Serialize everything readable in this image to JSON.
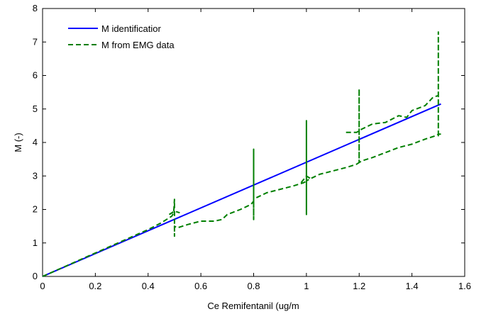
{
  "chart_data": {
    "type": "line",
    "title": "",
    "xlabel": "Ce Remifentanil (ug/m",
    "ylabel": "M (-)",
    "xlim": [
      0,
      1.6
    ],
    "ylim": [
      0,
      8
    ],
    "xticks": [
      "0",
      "0.2",
      "0.4",
      "0.6",
      "0.8",
      "1",
      "1.2",
      "1.4",
      "1.6"
    ],
    "yticks": [
      "0",
      "1",
      "2",
      "3",
      "4",
      "5",
      "6",
      "7",
      "8"
    ],
    "grid": false,
    "legend_position": "top-left",
    "series": [
      {
        "name": "M identificatior",
        "color": "#0000ff",
        "style": "solid",
        "x": [
          0,
          1.51
        ],
        "y": [
          0,
          5.15
        ]
      },
      {
        "name": "M from EMG data",
        "color": "#007f00",
        "style": "dashed",
        "x": [
          0,
          0.1,
          0.2,
          0.3,
          0.4,
          0.45,
          0.49,
          0.497,
          0.5,
          0.5,
          0.5,
          0.5,
          0.5,
          0.51,
          0.55,
          0.6,
          0.65,
          0.68,
          0.7,
          0.75,
          0.79,
          0.8,
          0.8,
          0.8,
          0.8,
          0.8,
          0.81,
          0.85,
          0.9,
          0.95,
          0.99,
          1.0,
          1.0,
          1.0,
          1.0,
          1.0,
          1.01,
          1.05,
          1.1,
          1.15,
          1.19,
          1.2,
          1.2,
          1.2,
          1.2,
          1.2,
          1.21,
          1.25,
          1.3,
          1.35,
          1.4,
          1.45,
          1.49,
          1.5,
          1.5,
          1.5,
          1.5,
          1.5,
          1.51
        ],
        "y": [
          0,
          0.35,
          0.7,
          1.05,
          1.4,
          1.6,
          1.8,
          1.9,
          2.3,
          1.2,
          1.5,
          1.4,
          1.5,
          1.45,
          1.55,
          1.65,
          1.65,
          1.7,
          1.85,
          2.0,
          2.15,
          2.25,
          3.8,
          1.7,
          2.4,
          2.3,
          2.35,
          2.5,
          2.6,
          2.7,
          2.8,
          2.85,
          4.65,
          1.85,
          2.9,
          2.85,
          2.9,
          3.05,
          3.15,
          3.25,
          3.35,
          3.4,
          5.6,
          4.3,
          3.45,
          3.4,
          3.45,
          3.55,
          3.7,
          3.85,
          3.95,
          4.1,
          4.2,
          4.25,
          7.3,
          4.2,
          4.3,
          4.25,
          4.25
        ]
      },
      {
        "name": "",
        "color": "#007f00",
        "style": "dashed",
        "x": [
          0.48,
          0.5,
          0.52
        ],
        "y": [
          1.85,
          1.95,
          1.9
        ]
      },
      {
        "name": "",
        "color": "#007f00",
        "style": "dashed",
        "x": [
          0.98,
          1.0,
          1.02
        ],
        "y": [
          2.8,
          3.0,
          2.9
        ]
      },
      {
        "name": "",
        "color": "#007f00",
        "style": "dashed",
        "x": [
          1.15,
          1.19,
          1.2,
          1.21,
          1.25,
          1.3,
          1.35,
          1.38,
          1.4,
          1.45,
          1.48,
          1.5
        ],
        "y": [
          4.3,
          4.3,
          4.35,
          4.4,
          4.55,
          4.6,
          4.8,
          4.75,
          4.95,
          5.1,
          5.35,
          5.4
        ]
      }
    ]
  }
}
